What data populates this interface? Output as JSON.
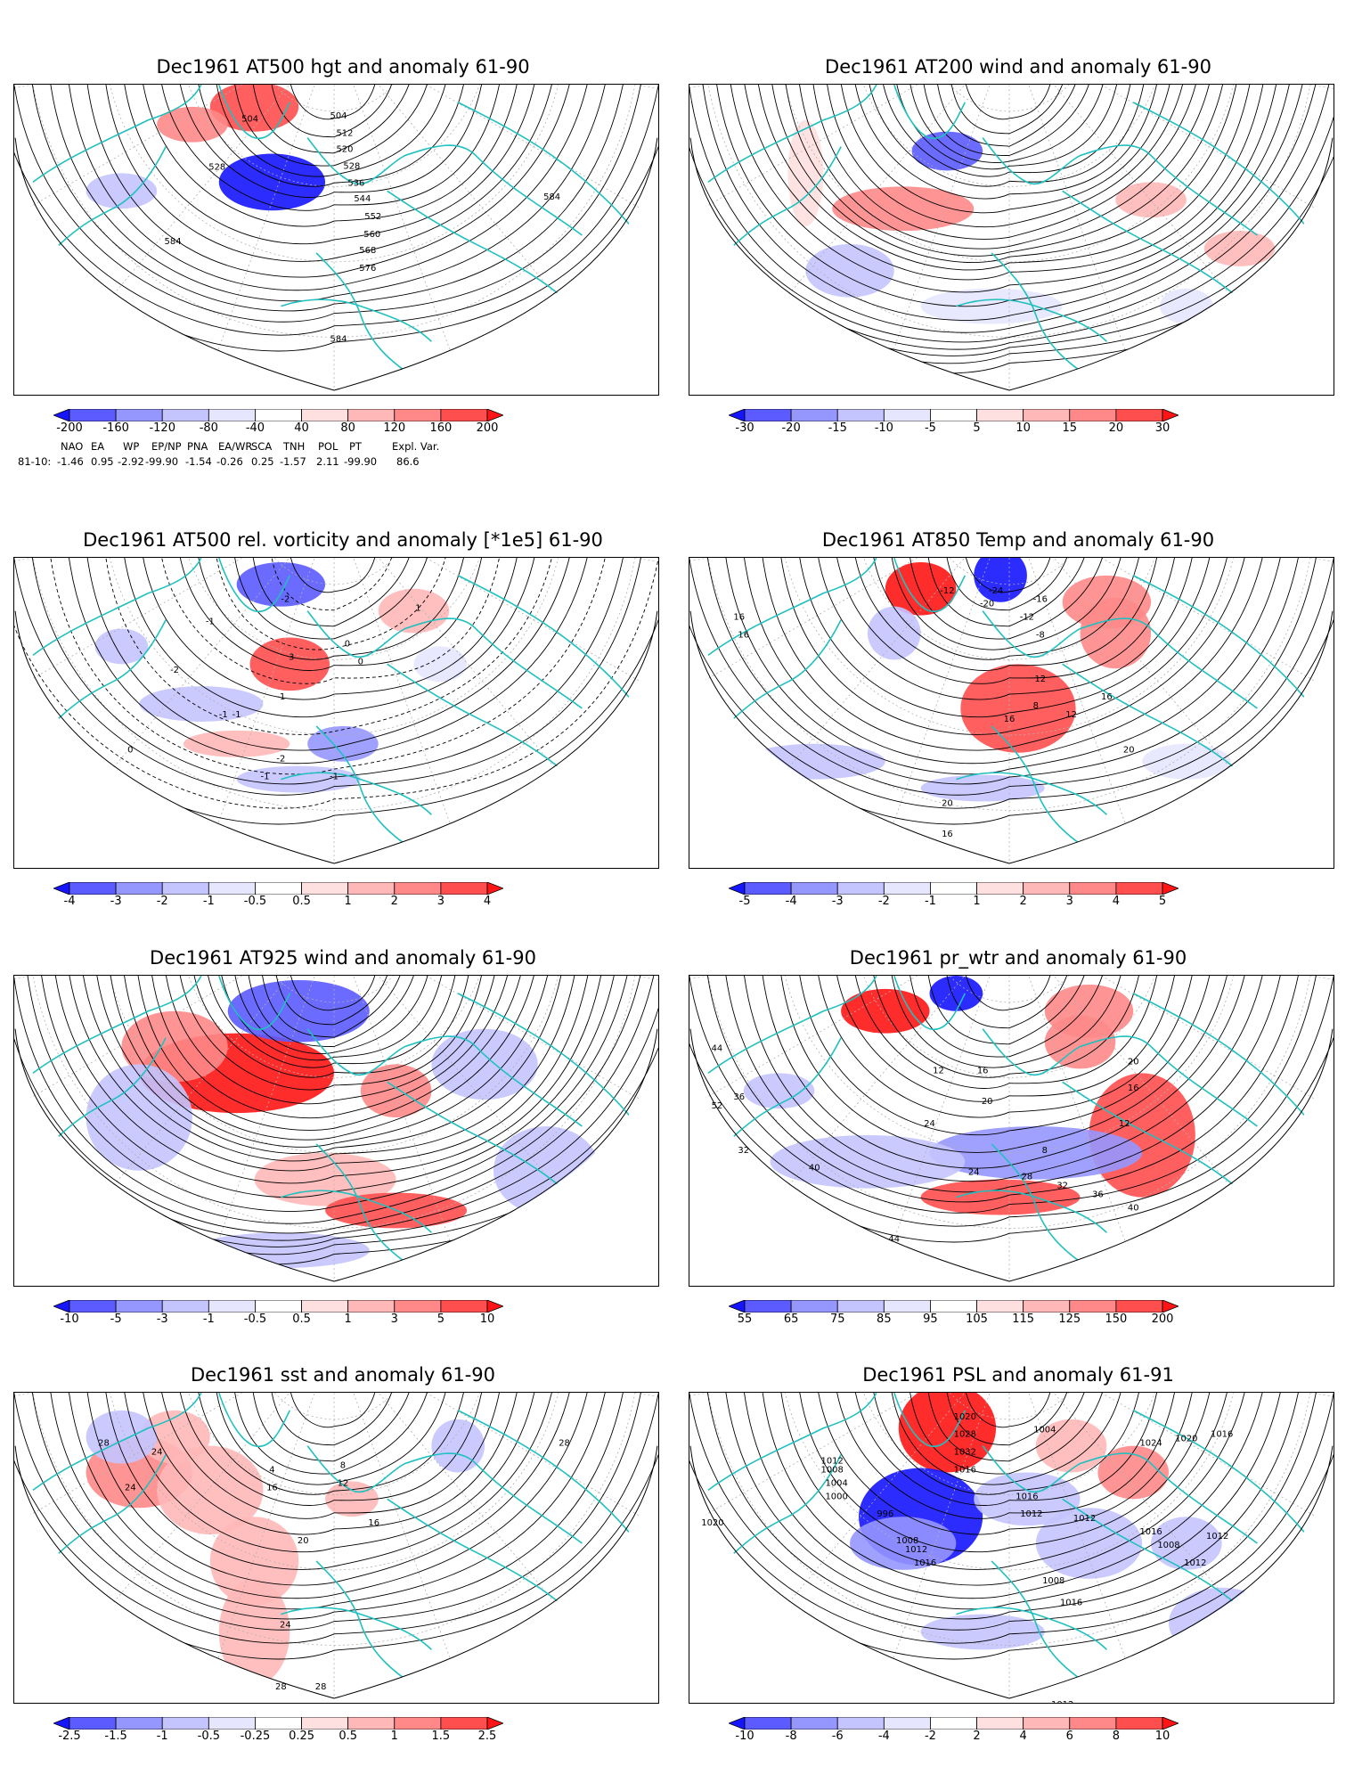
{
  "panels": [
    {
      "id": "hgt500",
      "title": "Dec1961 AT500 hgt and anomaly 61-90",
      "colorbar": [
        "-200",
        "-160",
        "-120",
        "-80",
        "-40",
        "40",
        "80",
        "120",
        "160",
        "200"
      ],
      "contour_labels": [
        "504",
        "504",
        "512",
        "520",
        "528",
        "528",
        "536",
        "544",
        "552",
        "560",
        "568",
        "576",
        "584",
        "584",
        "584"
      ],
      "index_header": [
        "NAO",
        "EA",
        "WP",
        "EP/NP",
        "PNA",
        "EA/WR",
        "SCA",
        "TNH",
        "POL",
        "PT",
        "Expl. Var."
      ],
      "index_row_label": "81-10:",
      "index_values": [
        "-1.46",
        "0.95",
        "-2.92",
        "-99.90",
        "-1.54",
        "-0.26",
        "0.25",
        "-1.57",
        "2.11",
        "-99.90",
        "86.6"
      ]
    },
    {
      "id": "wind200",
      "title": "Dec1961 AT200 wind and anomaly 61-90",
      "colorbar": [
        "-30",
        "-20",
        "-15",
        "-10",
        "-5",
        "5",
        "10",
        "15",
        "20",
        "30"
      ],
      "contour_labels": []
    },
    {
      "id": "vort500",
      "title": "Dec1961 AT500 rel. vorticity and anomaly [*1e5] 61-90",
      "colorbar": [
        "-4",
        "-3",
        "-2",
        "-1",
        "-0.5",
        "0.5",
        "1",
        "2",
        "3",
        "4"
      ],
      "contour_labels": [
        "-2",
        "-1",
        "3",
        "-1",
        "0",
        "-1",
        "1",
        "-2",
        "0",
        "-1",
        "-1",
        "-1",
        "-2",
        "0"
      ]
    },
    {
      "id": "temp850",
      "title": "Dec1961 AT850 Temp and anomaly 61-90",
      "colorbar": [
        "-5",
        "-4",
        "-3",
        "-2",
        "-1",
        "1",
        "2",
        "3",
        "4",
        "5"
      ],
      "contour_labels": [
        "-12",
        "-24",
        "-20",
        "-16",
        "-12",
        "-8",
        "16",
        "16",
        "16",
        "12",
        "8",
        "12",
        "16",
        "20",
        "20",
        "16"
      ]
    },
    {
      "id": "wind925",
      "title": "Dec1961 AT925 wind and anomaly 61-90",
      "colorbar": [
        "-10",
        "-5",
        "-3",
        "-1",
        "-0.5",
        "0.5",
        "1",
        "3",
        "5",
        "10"
      ],
      "contour_labels": []
    },
    {
      "id": "prwtr",
      "title": "Dec1961 pr_wtr and anomaly 61-90",
      "colorbar": [
        "55",
        "65",
        "75",
        "85",
        "95",
        "105",
        "115",
        "125",
        "150",
        "200"
      ],
      "contour_labels": [
        "44",
        "52",
        "36",
        "32",
        "40",
        "12",
        "16",
        "20",
        "24",
        "8",
        "12",
        "16",
        "20",
        "24",
        "28",
        "32",
        "36",
        "40",
        "44"
      ]
    },
    {
      "id": "sst",
      "title": "Dec1961 sst and anomaly 61-90",
      "colorbar": [
        "-2.5",
        "-1.5",
        "-1",
        "-0.5",
        "-0.25",
        "0.25",
        "0.5",
        "1",
        "1.5",
        "2.5"
      ],
      "contour_labels": [
        "28",
        "24",
        "24",
        "4",
        "16",
        "12",
        "8",
        "20",
        "24",
        "28",
        "28",
        "28",
        "16"
      ]
    },
    {
      "id": "psl",
      "title": "Dec1961 PSL and anomaly 61-91",
      "colorbar": [
        "-10",
        "-8",
        "-6",
        "-4",
        "-2",
        "2",
        "4",
        "6",
        "8",
        "10"
      ],
      "contour_labels": [
        "1020",
        "1012",
        "1008",
        "1004",
        "1000",
        "996",
        "1008",
        "1012",
        "1016",
        "1020",
        "1028",
        "1032",
        "1016",
        "1004",
        "1016",
        "1012",
        "1012",
        "1016",
        "1012",
        "1008",
        "1012",
        "1008",
        "1016",
        "1012",
        "1024",
        "1020",
        "1016"
      ]
    }
  ],
  "colors": {
    "coastline": "#20c0c0",
    "contour": "#000000",
    "grid": "#b0b0b0",
    "scale": [
      "#1515ff",
      "#5b5bff",
      "#9696ff",
      "#c4c4ff",
      "#e6e6ff",
      "#ffffff",
      "#ffe0e0",
      "#ffb8b8",
      "#ff8888",
      "#ff4e4e",
      "#ff1515"
    ]
  }
}
